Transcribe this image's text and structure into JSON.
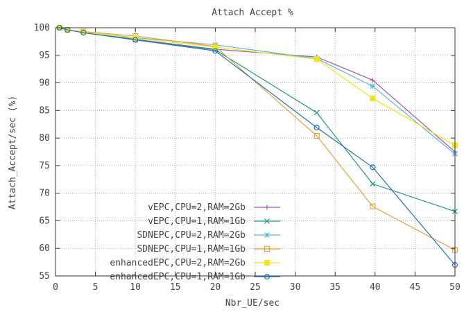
{
  "chart_data": {
    "type": "line",
    "title": "Attach Accept %",
    "xlabel": "Nbr_UE/sec",
    "ylabel": "Attach_Accept/sec (%)",
    "xlim": [
      0,
      50
    ],
    "ylim": [
      55,
      100
    ],
    "xticks": [
      0,
      5,
      10,
      15,
      20,
      25,
      30,
      35,
      40,
      45,
      50
    ],
    "yticks": [
      55,
      60,
      65,
      70,
      75,
      80,
      85,
      90,
      95,
      100
    ],
    "grid": true,
    "legend_position": "bottom-left",
    "x": [
      0.5,
      1.5,
      3.5,
      10,
      20,
      32.7,
      39.7,
      50
    ],
    "series": [
      {
        "name": "vEPC,CPU=2,RAM=2Gb",
        "color": "#9b59b6",
        "marker": "plus",
        "values": [
          100,
          99.6,
          99.2,
          97.9,
          96.1,
          94.7,
          90.5,
          77.5
        ]
      },
      {
        "name": "vEPC,CPU=1,RAM=1Gb",
        "color": "#1a9c72",
        "marker": "cross",
        "values": [
          100,
          99.6,
          99.2,
          97.8,
          96.0,
          84.6,
          71.7,
          66.7
        ]
      },
      {
        "name": "SDNEPC,CPU=2,RAM=2Gb",
        "color": "#5bb8dc",
        "marker": "star",
        "values": [
          100,
          99.6,
          99.2,
          98.2,
          96.9,
          94.4,
          89.4,
          77.1
        ]
      },
      {
        "name": "SDNEPC,CPU=1,RAM=1Gb",
        "color": "#e3a13b",
        "marker": "square",
        "values": [
          100,
          99.6,
          99.3,
          98.5,
          96.6,
          80.4,
          67.6,
          59.7
        ]
      },
      {
        "name": "enhancedEPC,CPU=2,RAM=2Gb",
        "color": "#f2e41a",
        "marker": "filled-square",
        "values": [
          100,
          99.6,
          99.2,
          98.1,
          96.5,
          94.3,
          87.2,
          78.7
        ]
      },
      {
        "name": "enhancedEPC,CPU=1,RAM=1Gb",
        "color": "#1f74b4",
        "marker": "circle",
        "values": [
          100,
          99.6,
          99.1,
          97.8,
          95.8,
          81.9,
          74.7,
          57.0
        ]
      }
    ]
  }
}
